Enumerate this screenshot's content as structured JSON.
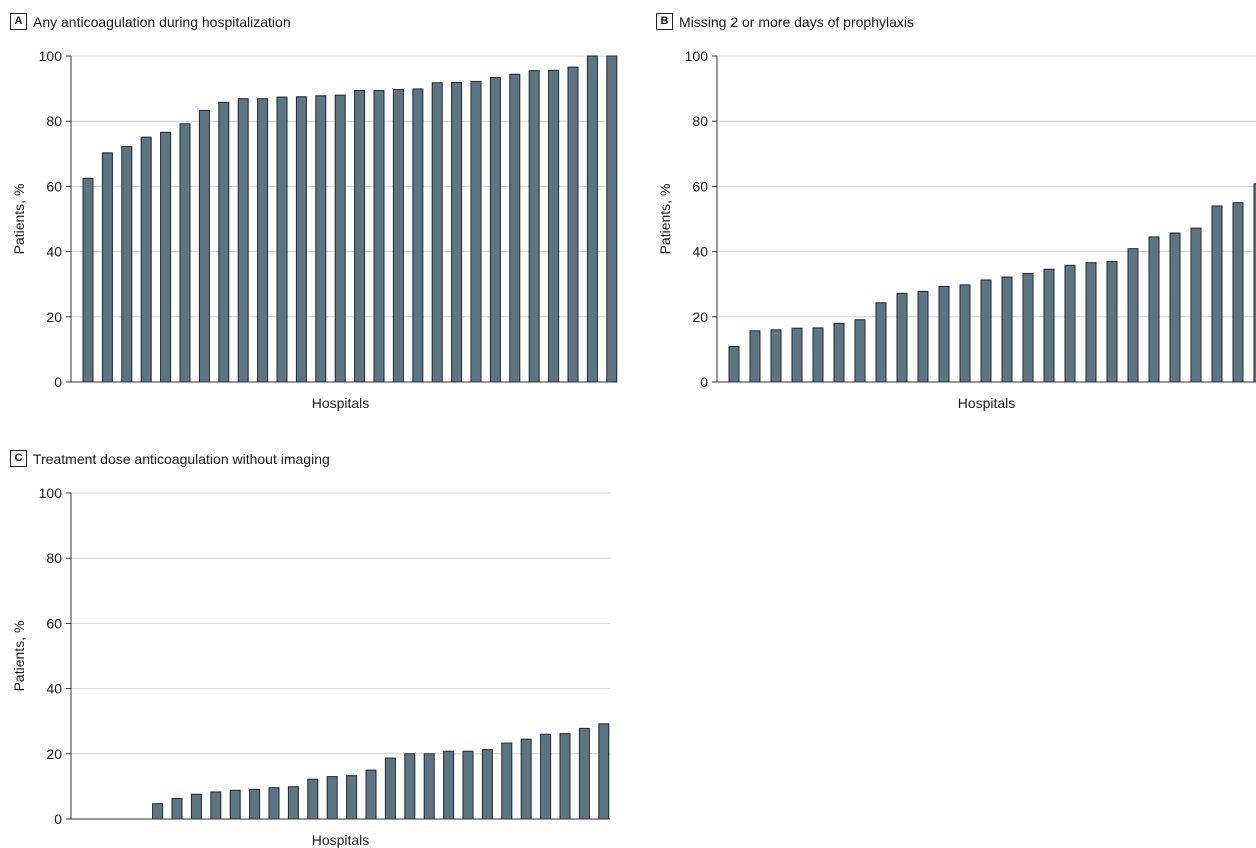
{
  "chart_data": [
    {
      "type": "bar",
      "panel_label": "A",
      "title": "Any anticoagulation during hospitalization",
      "xlabel": "Hospitals",
      "ylabel": "Patients, %",
      "ylim": [
        0,
        100
      ],
      "yticks": [
        0,
        20,
        40,
        60,
        80,
        100
      ],
      "grid": true,
      "bar_color": "#5b7582",
      "values": [
        62.5,
        70.3,
        72.2,
        75.1,
        76.6,
        79.2,
        83.3,
        85.8,
        86.9,
        86.9,
        87.4,
        87.5,
        87.8,
        88.0,
        89.4,
        89.4,
        89.7,
        89.9,
        91.8,
        91.9,
        92.2,
        93.4,
        94.4,
        95.5,
        95.6,
        96.6,
        100,
        100
      ]
    },
    {
      "type": "bar",
      "panel_label": "B",
      "title": "Missing 2 or more days of prophylaxis",
      "xlabel": "Hospitals",
      "ylabel": "Patients, %",
      "ylim": [
        0,
        100
      ],
      "yticks": [
        0,
        20,
        40,
        60,
        80,
        100
      ],
      "grid": true,
      "bar_color": "#5b7582",
      "values": [
        10.9,
        15.7,
        16.0,
        16.5,
        16.6,
        18.0,
        19.1,
        24.3,
        27.2,
        27.8,
        29.3,
        29.8,
        31.3,
        32.2,
        33.3,
        34.6,
        35.8,
        36.6,
        37.0,
        40.9,
        44.5,
        45.7,
        47.2,
        54.0,
        55.0,
        60.8
      ]
    },
    {
      "type": "bar",
      "panel_label": "C",
      "title": "Treatment dose anticoagulation without imaging",
      "xlabel": "Hospitals",
      "ylabel": "Patients, %",
      "ylim": [
        0,
        100
      ],
      "yticks": [
        0,
        20,
        40,
        60,
        80,
        100
      ],
      "grid": true,
      "bar_color": "#5b7582",
      "values": [
        0,
        0,
        0,
        0,
        4.7,
        6.3,
        7.6,
        8.3,
        8.8,
        9.1,
        9.6,
        9.9,
        12.2,
        13.0,
        13.3,
        15.0,
        18.7,
        20.0,
        20.0,
        20.8,
        20.8,
        21.3,
        23.3,
        24.5,
        26.0,
        26.2,
        27.8,
        29.2
      ]
    }
  ]
}
